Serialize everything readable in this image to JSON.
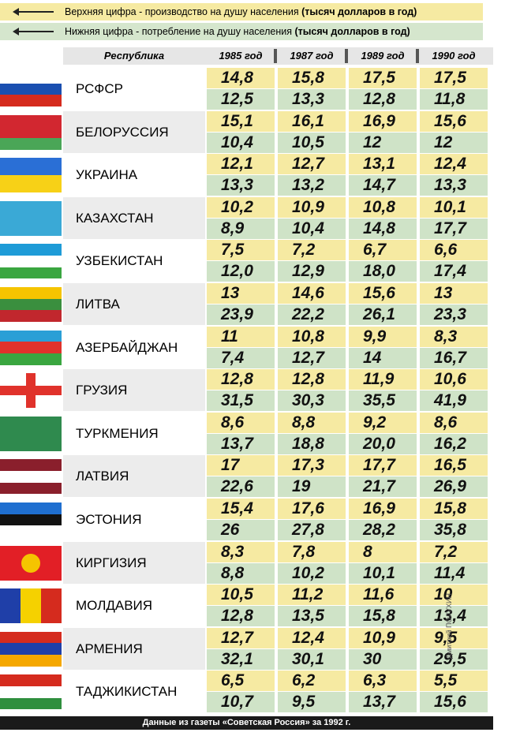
{
  "legend": [
    {
      "text": "Верхняя цифра - производство на душу населения",
      "unit": "(тысяч долларов в год)"
    },
    {
      "text": "Нижняя цифра - потребление на душу населения",
      "unit": "(тысяч долларов в год)"
    }
  ],
  "header": {
    "republic": "Республика",
    "years": [
      "1985 год",
      "1987 год",
      "1989 год",
      "1990 год"
    ]
  },
  "rows": [
    {
      "name": "РСФСР",
      "top": [
        "14,8",
        "15,8",
        "17,5",
        "17,5"
      ],
      "bottom": [
        "12,5",
        "13,3",
        "12,8",
        "11,8"
      ]
    },
    {
      "name": "БЕЛОРУССИЯ",
      "top": [
        "15,1",
        "16,1",
        "16,9",
        "15,6"
      ],
      "bottom": [
        "10,4",
        "10,5",
        "12",
        "12"
      ]
    },
    {
      "name": "УКРАИНА",
      "top": [
        "12,1",
        "12,7",
        "13,1",
        "12,4"
      ],
      "bottom": [
        "13,3",
        "13,2",
        "14,7",
        "13,3"
      ]
    },
    {
      "name": "КАЗАХСТАН",
      "top": [
        "10,2",
        "10,9",
        "10,8",
        "10,1"
      ],
      "bottom": [
        "8,9",
        "10,4",
        "14,8",
        "17,7"
      ]
    },
    {
      "name": "УЗБЕКИСТАН",
      "top": [
        "7,5",
        "7,2",
        "6,7",
        "6,6"
      ],
      "bottom": [
        "12,0",
        "12,9",
        "18,0",
        "17,4"
      ]
    },
    {
      "name": "ЛИТВА",
      "top": [
        "13",
        "14,6",
        "15,6",
        "13"
      ],
      "bottom": [
        "23,9",
        "22,2",
        "26,1",
        "23,3"
      ]
    },
    {
      "name": "АЗЕРБАЙДЖАН",
      "top": [
        "11",
        "10,8",
        "9,9",
        "8,3"
      ],
      "bottom": [
        "7,4",
        "12,7",
        "14",
        "16,7"
      ]
    },
    {
      "name": "ГРУЗИЯ",
      "top": [
        "12,8",
        "12,8",
        "11,9",
        "10,6"
      ],
      "bottom": [
        "31,5",
        "30,3",
        "35,5",
        "41,9"
      ]
    },
    {
      "name": "ТУРКМЕНИЯ",
      "top": [
        "8,6",
        "8,8",
        "9,2",
        "8,6"
      ],
      "bottom": [
        "13,7",
        "18,8",
        "20,0",
        "16,2"
      ]
    },
    {
      "name": "ЛАТВИЯ",
      "top": [
        "17",
        "17,3",
        "17,7",
        "16,5"
      ],
      "bottom": [
        "22,6",
        "19",
        "21,7",
        "26,9"
      ]
    },
    {
      "name": "ЭСТОНИЯ",
      "top": [
        "15,4",
        "17,6",
        "16,9",
        "15,8"
      ],
      "bottom": [
        "26",
        "27,8",
        "28,2",
        "35,8"
      ]
    },
    {
      "name": "КИРГИЗИЯ",
      "top": [
        "8,3",
        "7,8",
        "8",
        "7,2"
      ],
      "bottom": [
        "8,8",
        "10,2",
        "10,1",
        "11,4"
      ]
    },
    {
      "name": "МОЛДАВИЯ",
      "top": [
        "10,5",
        "11,2",
        "11,6",
        "10"
      ],
      "bottom": [
        "12,8",
        "13,5",
        "15,8",
        "13,4"
      ]
    },
    {
      "name": "АРМЕНИЯ",
      "top": [
        "12,7",
        "12,4",
        "10,9",
        "9,5"
      ],
      "bottom": [
        "32,1",
        "30,1",
        "30",
        "29,5"
      ]
    },
    {
      "name": "ТАДЖИКИСТАН",
      "top": [
        "6,5",
        "6,2",
        "6,3",
        "5,5"
      ],
      "bottom": [
        "10,7",
        "9,5",
        "13,7",
        "15,6"
      ]
    }
  ],
  "footer": "Данные из газеты «Советская Россия» за 1992 г.",
  "credit": "Дмитрий ПОЛУХИН"
}
